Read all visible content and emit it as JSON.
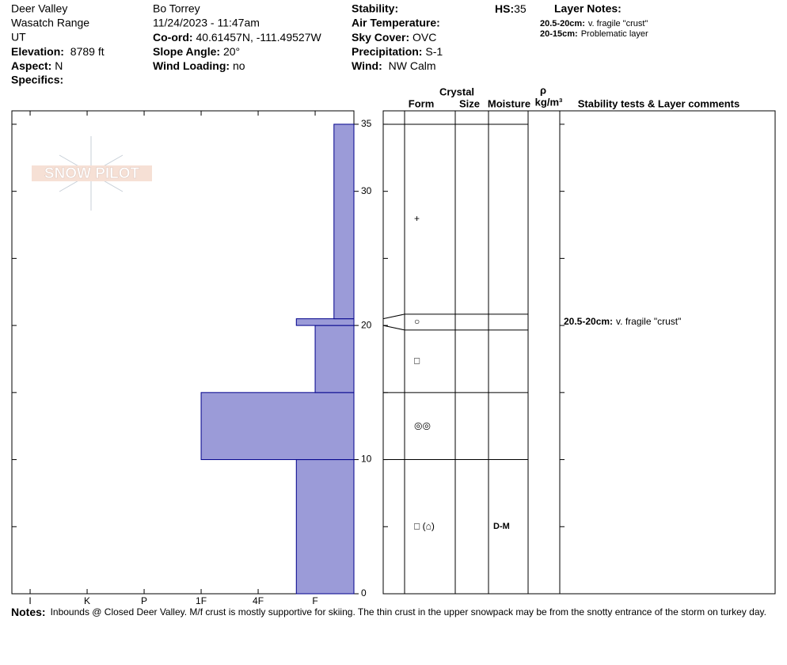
{
  "header": {
    "location": "Deer Valley",
    "range": "Wasatch Range",
    "state": "UT",
    "elevation_label": "Elevation:",
    "elevation": "8789 ft",
    "aspect_label": "Aspect:",
    "aspect": "N",
    "specifics_label": "Specifics:",
    "observer": "Bo Torrey",
    "datetime": "11/24/2023 - 11:47am",
    "coord_label": "Co-ord:",
    "coord": "40.61457N, -111.49527W",
    "slope_label": "Slope Angle:",
    "slope": "20°",
    "wind_loading_label": "Wind Loading:",
    "wind_loading": "no",
    "stability_label": "Stability:",
    "air_temp_label": "Air Temperature:",
    "sky_label": "Sky Cover:",
    "sky": "OVC",
    "precip_label": "Precipitation:",
    "precip": "S-1",
    "wind_label": "Wind:",
    "wind": "NW Calm",
    "hs_label": "HS:",
    "hs": 35,
    "layer_notes_label": "Layer Notes:",
    "layer_notes": [
      {
        "range": "20.5-20cm:",
        "text": "v. fragile \"crust\""
      },
      {
        "range": "20-15cm:",
        "text": "Problematic layer"
      }
    ]
  },
  "logo": "SNOW PILOT",
  "profile": {
    "type": "bar",
    "color": "#9b9bd8",
    "edge_color": "#00008b",
    "ylim": [
      0,
      36
    ],
    "yticks": [
      0,
      10,
      20,
      30,
      35
    ],
    "minor_yticks": [
      5,
      15,
      25
    ],
    "xlim": [
      6.32,
      0.32
    ],
    "xticks": [
      {
        "value": 6,
        "label": "I"
      },
      {
        "value": 5,
        "label": "K"
      },
      {
        "value": 4,
        "label": "P"
      },
      {
        "value": 3,
        "label": "1F"
      },
      {
        "value": 2,
        "label": "4F"
      },
      {
        "value": 1,
        "label": "F"
      }
    ],
    "layers": [
      {
        "bottom": 0,
        "top": 10,
        "hardness": 1.33,
        "form": "□ (⌂)",
        "moisture": "D-M"
      },
      {
        "bottom": 10,
        "top": 15,
        "hardness": 3,
        "form": "◎◎"
      },
      {
        "bottom": 15,
        "top": 20,
        "hardness": 1,
        "form": "□"
      },
      {
        "bottom": 20,
        "top": 20.5,
        "hardness": 1.33,
        "form": "○"
      },
      {
        "bottom": 20.5,
        "top": 35,
        "hardness": 0.67,
        "form": "+"
      }
    ]
  },
  "table": {
    "headers": {
      "crystal": "Crystal",
      "form": "Form",
      "size": "Size",
      "moisture": "Moisture",
      "rho": "ρ",
      "density": "kg/m³",
      "comments": "Stability tests & Layer comments"
    },
    "comments": [
      {
        "height": 20.25,
        "range": "20.5-20cm:",
        "text": "v. fragile \"crust\""
      }
    ]
  },
  "notes_label": "Notes:",
  "notes": "Inbounds @ Closed Deer Valley. M/f crust is mostly supportive for skiing. The thin crust in the upper snowpack may be from the snotty entrance of the storm on turkey day."
}
